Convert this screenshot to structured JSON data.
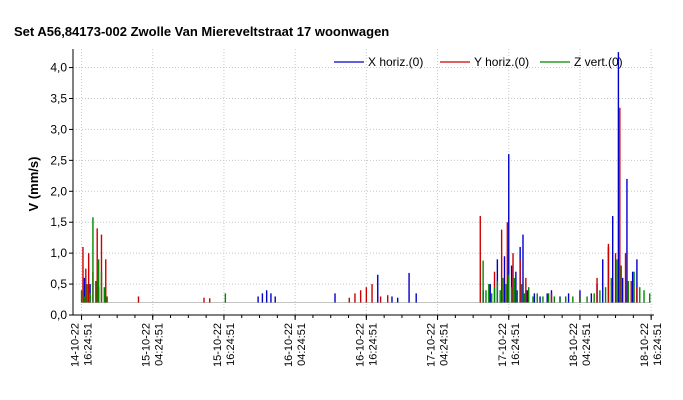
{
  "chart_data": {
    "type": "bar",
    "title": "Set A56,84173-002 Zwolle Van Miereveltstraat 17 woonwagen",
    "xlabel": "",
    "ylabel": "V (mm/s)",
    "ylim": [
      0,
      4.3
    ],
    "grid": true,
    "legend_position": "top-right",
    "y_ticks": [
      "0,0",
      "0,5",
      "1,0",
      "1,5",
      "2,0",
      "2,5",
      "3,0",
      "3,5",
      "4,0"
    ],
    "x_ticks": [
      {
        "x": 0,
        "lines": [
          "14-10-22",
          "16:24:51"
        ]
      },
      {
        "x": 0.5,
        "lines": [
          "15-10-22",
          "04:24:51"
        ]
      },
      {
        "x": 1,
        "lines": [
          "15-10-22",
          "16:24:51"
        ]
      },
      {
        "x": 1.5,
        "lines": [
          "16-10-22",
          "04:24:51"
        ]
      },
      {
        "x": 2,
        "lines": [
          "16-10-22",
          "16:24:51"
        ]
      },
      {
        "x": 2.5,
        "lines": [
          "17-10-22",
          "04:24:51"
        ]
      },
      {
        "x": 3,
        "lines": [
          "17-10-22",
          "16:24:51"
        ]
      },
      {
        "x": 3.5,
        "lines": [
          "18-10-22",
          "04:24:51"
        ]
      },
      {
        "x": 4,
        "lines": [
          "18-10-22",
          "16:24:51"
        ]
      }
    ],
    "series": [
      {
        "name": "X horiz.(0)",
        "color": "#0000cc",
        "points": [
          [
            0.02,
            0.6
          ],
          [
            0.06,
            0.5
          ],
          [
            0.12,
            0.45
          ],
          [
            1.24,
            0.3
          ],
          [
            1.27,
            0.35
          ],
          [
            1.3,
            0.4
          ],
          [
            1.33,
            0.35
          ],
          [
            1.36,
            0.3
          ],
          [
            1.78,
            0.35
          ],
          [
            2.08,
            0.65
          ],
          [
            2.18,
            0.3
          ],
          [
            2.22,
            0.28
          ],
          [
            2.3,
            0.68
          ],
          [
            2.35,
            0.35
          ],
          [
            2.82,
            0.4
          ],
          [
            2.87,
            0.5
          ],
          [
            2.92,
            0.9
          ],
          [
            2.97,
            0.95
          ],
          [
            3.0,
            2.6
          ],
          [
            3.02,
            0.8
          ],
          [
            3.05,
            0.7
          ],
          [
            3.08,
            1.1
          ],
          [
            3.1,
            1.3
          ],
          [
            3.13,
            0.4
          ],
          [
            3.18,
            0.35
          ],
          [
            3.22,
            0.3
          ],
          [
            3.27,
            0.35
          ],
          [
            3.3,
            0.4
          ],
          [
            3.36,
            0.3
          ],
          [
            3.42,
            0.35
          ],
          [
            3.5,
            0.4
          ],
          [
            3.58,
            0.35
          ],
          [
            3.62,
            0.5
          ],
          [
            3.66,
            0.9
          ],
          [
            3.7,
            1.1
          ],
          [
            3.73,
            1.6
          ],
          [
            3.77,
            4.25
          ],
          [
            3.8,
            0.6
          ],
          [
            3.83,
            2.2
          ],
          [
            3.87,
            0.7
          ],
          [
            3.9,
            0.9
          ]
        ]
      },
      {
        "name": "Y horiz.(0)",
        "color": "#cc0000",
        "points": [
          [
            0.01,
            1.1
          ],
          [
            0.03,
            0.75
          ],
          [
            0.05,
            1.0
          ],
          [
            0.08,
            0.7
          ],
          [
            0.11,
            1.4
          ],
          [
            0.14,
            1.3
          ],
          [
            0.17,
            0.9
          ],
          [
            0.4,
            0.3
          ],
          [
            0.86,
            0.28
          ],
          [
            0.9,
            0.27
          ],
          [
            1.88,
            0.28
          ],
          [
            1.92,
            0.35
          ],
          [
            1.96,
            0.4
          ],
          [
            2.0,
            0.45
          ],
          [
            2.04,
            0.5
          ],
          [
            2.1,
            0.3
          ],
          [
            2.15,
            0.32
          ],
          [
            2.8,
            1.6
          ],
          [
            2.9,
            0.7
          ],
          [
            2.95,
            1.38
          ],
          [
            2.99,
            1.5
          ],
          [
            3.03,
            1.0
          ],
          [
            3.08,
            0.9
          ],
          [
            3.12,
            0.6
          ],
          [
            3.3,
            0.35
          ],
          [
            3.5,
            0.3
          ],
          [
            3.62,
            0.6
          ],
          [
            3.7,
            1.15
          ],
          [
            3.75,
            1.0
          ],
          [
            3.78,
            3.35
          ],
          [
            3.82,
            1.0
          ],
          [
            3.86,
            0.55
          ],
          [
            3.9,
            0.45
          ]
        ]
      },
      {
        "name": "Z vert.(0)",
        "color": "#008800",
        "points": [
          [
            0.0,
            0.4
          ],
          [
            0.02,
            0.3
          ],
          [
            0.04,
            0.5
          ],
          [
            0.06,
            0.35
          ],
          [
            0.08,
            1.58
          ],
          [
            0.1,
            0.55
          ],
          [
            0.12,
            0.9
          ],
          [
            0.14,
            0.7
          ],
          [
            0.16,
            0.45
          ],
          [
            0.18,
            0.3
          ],
          [
            1.01,
            0.35
          ],
          [
            2.82,
            0.88
          ],
          [
            2.84,
            0.4
          ],
          [
            2.86,
            0.5
          ],
          [
            2.88,
            0.35
          ],
          [
            2.9,
            0.45
          ],
          [
            2.92,
            0.55
          ],
          [
            2.94,
            0.4
          ],
          [
            2.96,
            0.6
          ],
          [
            2.98,
            0.5
          ],
          [
            3.0,
            0.65
          ],
          [
            3.02,
            0.45
          ],
          [
            3.04,
            0.6
          ],
          [
            3.06,
            0.4
          ],
          [
            3.09,
            0.5
          ],
          [
            3.11,
            0.35
          ],
          [
            3.14,
            0.45
          ],
          [
            3.17,
            0.3
          ],
          [
            3.2,
            0.35
          ],
          [
            3.24,
            0.3
          ],
          [
            3.28,
            0.35
          ],
          [
            3.32,
            0.3
          ],
          [
            3.36,
            0.28
          ],
          [
            3.4,
            0.3
          ],
          [
            3.45,
            0.3
          ],
          [
            3.5,
            0.28
          ],
          [
            3.55,
            0.3
          ],
          [
            3.6,
            0.35
          ],
          [
            3.64,
            0.4
          ],
          [
            3.68,
            0.45
          ],
          [
            3.72,
            0.6
          ],
          [
            3.76,
            0.9
          ],
          [
            3.79,
            0.8
          ],
          [
            3.84,
            0.55
          ],
          [
            3.88,
            0.7
          ],
          [
            3.92,
            0.45
          ],
          [
            3.95,
            0.4
          ],
          [
            3.99,
            0.35
          ]
        ]
      }
    ]
  }
}
